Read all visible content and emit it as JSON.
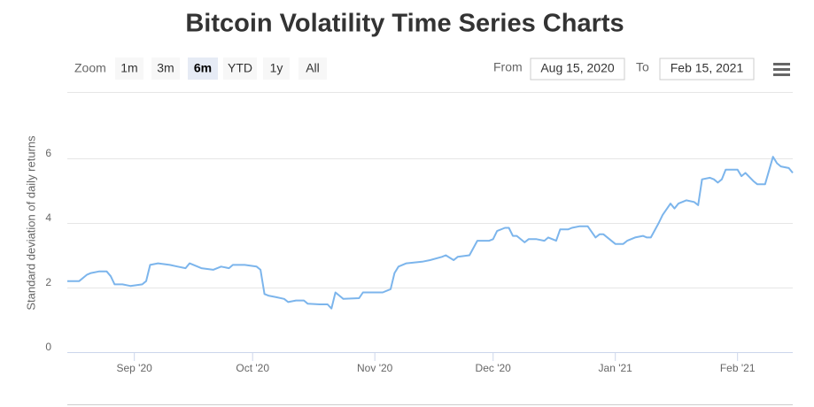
{
  "chart_data": {
    "type": "line",
    "title": "Bitcoin Volatility Time Series Charts",
    "zoom_label": "Zoom",
    "range_buttons": [
      "1m",
      "3m",
      "6m",
      "YTD",
      "1y",
      "All"
    ],
    "selected_button": 2,
    "from_label": "From",
    "from_value": "Aug 15, 2020",
    "to_label": "To",
    "to_value": "Feb 15, 2021",
    "y_label": "Standard deviation of daily returns",
    "xlim": [
      "2020-08-15",
      "2021-02-15"
    ],
    "xticks": [
      {
        "value": "2020-09-01",
        "label": "Sep '20"
      },
      {
        "value": "2020-10-01",
        "label": "Oct '20"
      },
      {
        "value": "2020-11-01",
        "label": "Nov '20"
      },
      {
        "value": "2020-12-01",
        "label": "Dec '20"
      },
      {
        "value": "2021-01-01",
        "label": "Jan '21"
      },
      {
        "value": "2021-02-01",
        "label": "Feb '21"
      }
    ],
    "ylim": [
      0,
      8
    ],
    "yticks": [
      0,
      2,
      4,
      6
    ],
    "grid": true,
    "color": "#7cb5ec",
    "x": [
      "2020-08-15",
      "2020-08-18",
      "2020-08-20",
      "2020-08-21",
      "2020-08-23",
      "2020-08-25",
      "2020-08-26",
      "2020-08-27",
      "2020-08-29",
      "2020-08-31",
      "2020-09-03",
      "2020-09-04",
      "2020-09-05",
      "2020-09-07",
      "2020-09-10",
      "2020-09-12",
      "2020-09-14",
      "2020-09-15",
      "2020-09-18",
      "2020-09-21",
      "2020-09-23",
      "2020-09-25",
      "2020-09-26",
      "2020-09-29",
      "2020-10-02",
      "2020-10-03",
      "2020-10-04",
      "2020-10-05",
      "2020-10-07",
      "2020-10-09",
      "2020-10-10",
      "2020-10-12",
      "2020-10-14",
      "2020-10-15",
      "2020-10-18",
      "2020-10-20",
      "2020-10-21",
      "2020-10-22",
      "2020-10-24",
      "2020-10-28",
      "2020-10-29",
      "2020-11-01",
      "2020-11-03",
      "2020-11-05",
      "2020-11-06",
      "2020-11-07",
      "2020-11-09",
      "2020-11-13",
      "2020-11-15",
      "2020-11-18",
      "2020-11-19",
      "2020-11-21",
      "2020-11-22",
      "2020-11-25",
      "2020-11-27",
      "2020-11-30",
      "2020-12-01",
      "2020-12-02",
      "2020-12-04",
      "2020-12-05",
      "2020-12-06",
      "2020-12-07",
      "2020-12-09",
      "2020-12-10",
      "2020-12-12",
      "2020-12-14",
      "2020-12-15",
      "2020-12-17",
      "2020-12-18",
      "2020-12-20",
      "2020-12-21",
      "2020-12-23",
      "2020-12-25",
      "2020-12-27",
      "2020-12-28",
      "2020-12-29",
      "2021-01-01",
      "2021-01-03",
      "2021-01-04",
      "2021-01-06",
      "2021-01-08",
      "2021-01-09",
      "2021-01-10",
      "2021-01-12",
      "2021-01-13",
      "2021-01-15",
      "2021-01-16",
      "2021-01-17",
      "2021-01-19",
      "2021-01-21",
      "2021-01-22",
      "2021-01-23",
      "2021-01-25",
      "2021-01-26",
      "2021-01-27",
      "2021-01-28",
      "2021-01-29",
      "2021-02-01",
      "2021-02-02",
      "2021-02-03",
      "2021-02-05",
      "2021-02-06",
      "2021-02-08",
      "2021-02-10",
      "2021-02-11",
      "2021-02-12",
      "2021-02-14",
      "2021-02-15"
    ],
    "values": [
      2.2,
      2.2,
      2.4,
      2.45,
      2.5,
      2.5,
      2.35,
      2.1,
      2.1,
      2.05,
      2.1,
      2.2,
      2.7,
      2.75,
      2.7,
      2.65,
      2.6,
      2.75,
      2.6,
      2.55,
      2.65,
      2.6,
      2.7,
      2.7,
      2.65,
      2.55,
      1.8,
      1.75,
      1.7,
      1.65,
      1.55,
      1.6,
      1.6,
      1.5,
      1.48,
      1.48,
      1.35,
      1.85,
      1.65,
      1.67,
      1.85,
      1.85,
      1.85,
      1.95,
      2.45,
      2.65,
      2.75,
      2.8,
      2.85,
      2.95,
      3.0,
      2.85,
      2.95,
      3.0,
      3.45,
      3.45,
      3.5,
      3.75,
      3.85,
      3.85,
      3.6,
      3.6,
      3.4,
      3.5,
      3.5,
      3.45,
      3.55,
      3.45,
      3.8,
      3.8,
      3.85,
      3.9,
      3.9,
      3.55,
      3.65,
      3.65,
      3.35,
      3.35,
      3.45,
      3.55,
      3.6,
      3.55,
      3.55,
      4.0,
      4.25,
      4.6,
      4.45,
      4.6,
      4.7,
      4.65,
      4.55,
      5.35,
      5.4,
      5.35,
      5.25,
      5.35,
      5.65,
      5.65,
      5.45,
      5.55,
      5.3,
      5.2,
      5.2,
      6.05,
      5.85,
      5.75,
      5.7,
      5.55
    ]
  }
}
